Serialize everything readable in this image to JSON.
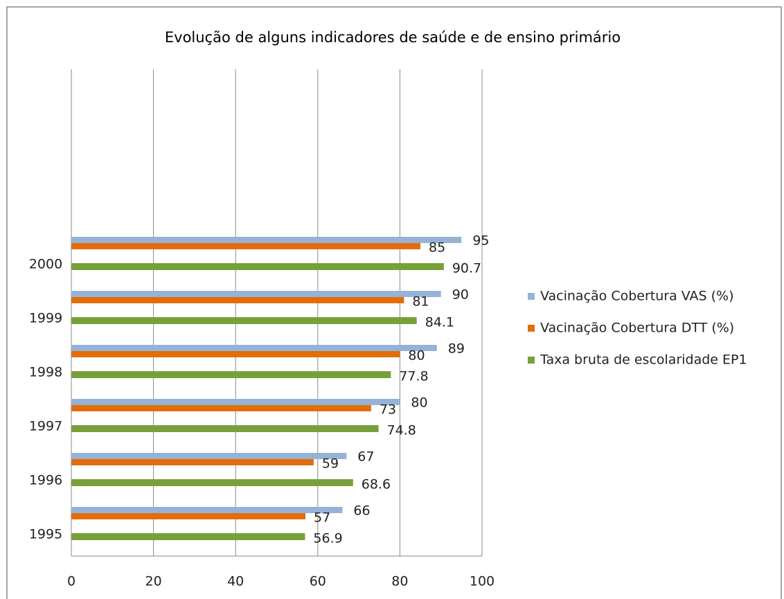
{
  "chart_data": {
    "type": "hbar",
    "title": "Evolução de alguns indicadores de saúde e de ensino primário",
    "categories": [
      "1995",
      "1996",
      "1997",
      "1998",
      "1999",
      "2000"
    ],
    "series": [
      {
        "name": "Vacinação Cobertura VAS (%)",
        "color": "#95b3d7",
        "values": [
          66,
          67,
          80,
          89,
          90,
          95
        ]
      },
      {
        "name": "Vacinação Cobertura DTT (%)",
        "color": "#e46c0a",
        "values": [
          57,
          59,
          73,
          80,
          81,
          85
        ]
      },
      {
        "name": "Taxa bruta de escolaridade EP1",
        "color": "#77a03b",
        "values": [
          56.9,
          68.6,
          74.8,
          77.8,
          84.1,
          90.7
        ]
      }
    ],
    "xlim": [
      0,
      100
    ],
    "xticks": [
      0,
      20,
      40,
      60,
      80,
      100
    ],
    "grid": true,
    "legend": "right"
  }
}
